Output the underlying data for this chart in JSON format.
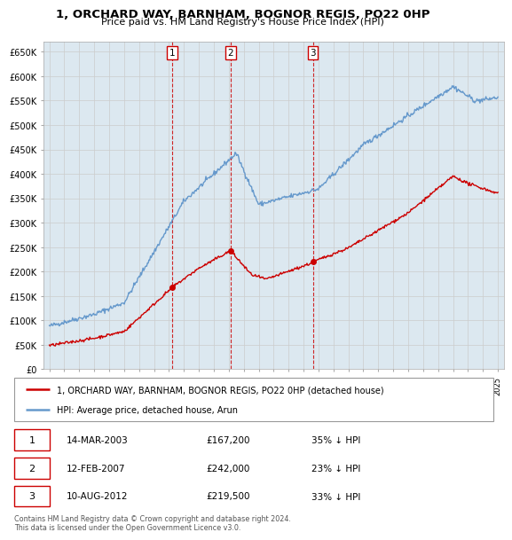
{
  "title": "1, ORCHARD WAY, BARNHAM, BOGNOR REGIS, PO22 0HP",
  "subtitle": "Price paid vs. HM Land Registry's House Price Index (HPI)",
  "ylabel_ticks": [
    "£0",
    "£50K",
    "£100K",
    "£150K",
    "£200K",
    "£250K",
    "£300K",
    "£350K",
    "£400K",
    "£450K",
    "£500K",
    "£550K",
    "£600K",
    "£650K"
  ],
  "ytick_values": [
    0,
    50000,
    100000,
    150000,
    200000,
    250000,
    300000,
    350000,
    400000,
    450000,
    500000,
    550000,
    600000,
    650000
  ],
  "legend_property_label": "1, ORCHARD WAY, BARNHAM, BOGNOR REGIS, PO22 0HP (detached house)",
  "legend_hpi_label": "HPI: Average price, detached house, Arun",
  "property_color": "#cc0000",
  "hpi_color": "#6699cc",
  "transactions": [
    {
      "num": 1,
      "date": "14-MAR-2003",
      "price": "£167,200",
      "hpi_diff": "35% ↓ HPI",
      "year": 2003.21,
      "price_val": 167200
    },
    {
      "num": 2,
      "date": "12-FEB-2007",
      "price": "£242,000",
      "hpi_diff": "23% ↓ HPI",
      "year": 2007.12,
      "price_val": 242000
    },
    {
      "num": 3,
      "date": "10-AUG-2012",
      "price": "£219,500",
      "hpi_diff": "33% ↓ HPI",
      "year": 2012.62,
      "price_val": 219500
    }
  ],
  "footer": "Contains HM Land Registry data © Crown copyright and database right 2024.\nThis data is licensed under the Open Government Licence v3.0.",
  "background_color": "#ffffff",
  "grid_color": "#cccccc",
  "plot_bg_color": "#dce8f0"
}
